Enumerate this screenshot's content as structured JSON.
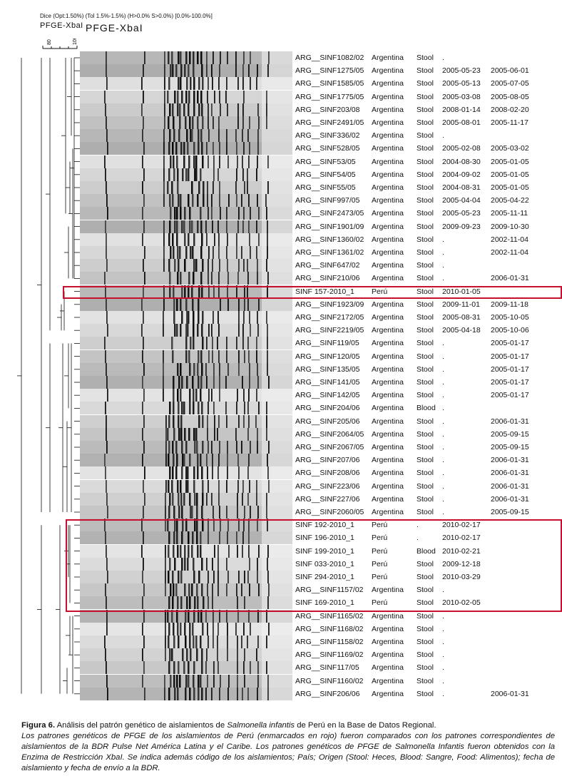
{
  "header": {
    "params": "Dice (Opt:1.50%) (Tol 1.5%-1.5%) (H>0.0% S>0.0%) [0.0%-100.0%]",
    "label_left": "PFGE-XbaI",
    "label_main": "PFGE-XbaI",
    "scale_ticks": [
      "80",
      "100"
    ]
  },
  "accent_color": "#c8102e",
  "rows": [
    {
      "key": "ARG__SINF1082/02",
      "country": "Argentina",
      "source": "Stool",
      "isolation": ".",
      "submission": ""
    },
    {
      "key": "ARG__SINF1275/05",
      "country": "Argentina",
      "source": "Stool",
      "isolation": "2005-05-23",
      "submission": "2005-06-01"
    },
    {
      "key": "ARG__SINF1585/05",
      "country": "Argentina",
      "source": "Stool",
      "isolation": "2005-05-13",
      "submission": "2005-07-05"
    },
    {
      "key": "ARG__SINF1775/05",
      "country": "Argentina",
      "source": "Stool",
      "isolation": "2005-03-08",
      "submission": "2005-08-05"
    },
    {
      "key": "ARG__SINF203/08",
      "country": "Argentina",
      "source": "Stool",
      "isolation": "2008-01-14",
      "submission": "2008-02-20"
    },
    {
      "key": "ARG__SINF2491/05",
      "country": "Argentina",
      "source": "Stool",
      "isolation": "2005-08-01",
      "submission": "2005-11-17"
    },
    {
      "key": "ARG__SINF336/02",
      "country": "Argentina",
      "source": "Stool",
      "isolation": ".",
      "submission": ""
    },
    {
      "key": "ARG__SINF528/05",
      "country": "Argentina",
      "source": "Stool",
      "isolation": "2005-02-08",
      "submission": "2005-03-02"
    },
    {
      "key": "ARG__SINF53/05",
      "country": "Argentina",
      "source": "Stool",
      "isolation": "2004-08-30",
      "submission": "2005-01-05"
    },
    {
      "key": "ARG__SINF54/05",
      "country": "Argentina",
      "source": "Stool",
      "isolation": "2004-09-02",
      "submission": "2005-01-05"
    },
    {
      "key": "ARG__SINF55/05",
      "country": "Argentina",
      "source": "Stool",
      "isolation": "2004-08-31",
      "submission": "2005-01-05"
    },
    {
      "key": "ARG__SINF997/05",
      "country": "Argentina",
      "source": "Stool",
      "isolation": "2005-04-04",
      "submission": "2005-04-22"
    },
    {
      "key": "ARG__SINF2473/05",
      "country": "Argentina",
      "source": "Stool",
      "isolation": "2005-05-23",
      "submission": "2005-11-11"
    },
    {
      "key": "ARG__SINF1901/09",
      "country": "Argentina",
      "source": "Stool",
      "isolation": "2009-09-23",
      "submission": "2009-10-30"
    },
    {
      "key": "ARG__SINF1360/02",
      "country": "Argentina",
      "source": "Stool",
      "isolation": ".",
      "submission": "2002-11-04"
    },
    {
      "key": "ARG__SINF1361/02",
      "country": "Argentina",
      "source": "Stool",
      "isolation": ".",
      "submission": "2002-11-04"
    },
    {
      "key": "ARG__SINF647/02",
      "country": "Argentina",
      "source": "Stool",
      "isolation": ".",
      "submission": ""
    },
    {
      "key": "ARG__SINF210/06",
      "country": "Argentina",
      "source": "Stool",
      "isolation": ".",
      "submission": "2006-01-31"
    },
    {
      "key": "SINF 157-2010_1",
      "country": "Perú",
      "source": "Stool",
      "isolation": "2010-01-05",
      "submission": ""
    },
    {
      "key": "ARG__SINF1923/09",
      "country": "Argentina",
      "source": "Stool",
      "isolation": "2009-11-01",
      "submission": "2009-11-18"
    },
    {
      "key": "ARG__SINF2172/05",
      "country": "Argentina",
      "source": "Stool",
      "isolation": "2005-08-31",
      "submission": "2005-10-05"
    },
    {
      "key": "ARG__SINF2219/05",
      "country": "Argentina",
      "source": "Stool",
      "isolation": "2005-04-18",
      "submission": "2005-10-06"
    },
    {
      "key": "ARG__SINF119/05",
      "country": "Argentina",
      "source": "Stool",
      "isolation": ".",
      "submission": "2005-01-17"
    },
    {
      "key": "ARG__SINF120/05",
      "country": "Argentina",
      "source": "Stool",
      "isolation": ".",
      "submission": "2005-01-17"
    },
    {
      "key": "ARG__SINF135/05",
      "country": "Argentina",
      "source": "Stool",
      "isolation": ".",
      "submission": "2005-01-17"
    },
    {
      "key": "ARG__SINF141/05",
      "country": "Argentina",
      "source": "Stool",
      "isolation": ".",
      "submission": "2005-01-17"
    },
    {
      "key": "ARG__SINF142/05",
      "country": "Argentina",
      "source": "Stool",
      "isolation": ".",
      "submission": "2005-01-17"
    },
    {
      "key": "ARG__SINF204/06",
      "country": "Argentina",
      "source": "Blood",
      "isolation": ".",
      "submission": ""
    },
    {
      "key": "ARG__SINF205/06",
      "country": "Argentina",
      "source": "Stool",
      "isolation": ".",
      "submission": "2006-01-31"
    },
    {
      "key": "ARG__SINF2064/05",
      "country": "Argentina",
      "source": "Stool",
      "isolation": ".",
      "submission": "2005-09-15"
    },
    {
      "key": "ARG__SINF2067/05",
      "country": "Argentina",
      "source": "Stool",
      "isolation": ".",
      "submission": "2005-09-15"
    },
    {
      "key": "ARG__SINF207/06",
      "country": "Argentina",
      "source": "Stool",
      "isolation": ".",
      "submission": "2006-01-31"
    },
    {
      "key": "ARG__SINF208/06",
      "country": "Argentina",
      "source": "Stool",
      "isolation": ".",
      "submission": "2006-01-31"
    },
    {
      "key": "ARG__SINF223/06",
      "country": "Argentina",
      "source": "Stool",
      "isolation": ".",
      "submission": "2006-01-31"
    },
    {
      "key": "ARG__SINF227/06",
      "country": "Argentina",
      "source": "Stool",
      "isolation": ".",
      "submission": "2006-01-31"
    },
    {
      "key": "ARG__SINF2060/05",
      "country": "Argentina",
      "source": "Stool",
      "isolation": ".",
      "submission": "2005-09-15"
    },
    {
      "key": "SINF 192-2010_1",
      "country": "Perú",
      "source": ".",
      "isolation": "2010-02-17",
      "submission": ""
    },
    {
      "key": "SINF 196-2010_1",
      "country": "Perú",
      "source": ".",
      "isolation": "2010-02-17",
      "submission": ""
    },
    {
      "key": "SINF 199-2010_1",
      "country": "Perú",
      "source": "Blood",
      "isolation": "2010-02-21",
      "submission": ""
    },
    {
      "key": "SINF 033-2010_1",
      "country": "Perú",
      "source": "Stool",
      "isolation": "2009-12-18",
      "submission": ""
    },
    {
      "key": "SINF 294-2010_1",
      "country": "Perú",
      "source": "Stool",
      "isolation": "2010-03-29",
      "submission": ""
    },
    {
      "key": "ARG__SINF1157/02",
      "country": "Argentina",
      "source": "Stool",
      "isolation": ".",
      "submission": ""
    },
    {
      "key": "SINF 169-2010_1",
      "country": "Perú",
      "source": "Stool",
      "isolation": "2010-02-05",
      "submission": ""
    },
    {
      "key": "ARG__SINF1165/02",
      "country": "Argentina",
      "source": "Stool",
      "isolation": ".",
      "submission": ""
    },
    {
      "key": "ARG__SINF1168/02",
      "country": "Argentina",
      "source": "Stool",
      "isolation": ".",
      "submission": ""
    },
    {
      "key": "ARG__SINF1158/02",
      "country": "Argentina",
      "source": "Stool",
      "isolation": ".",
      "submission": ""
    },
    {
      "key": "ARG__SINF1169/02",
      "country": "Argentina",
      "source": "Stool",
      "isolation": ".",
      "submission": ""
    },
    {
      "key": "ARG__SINF117/05",
      "country": "Argentina",
      "source": "Stool",
      "isolation": ".",
      "submission": ""
    },
    {
      "key": "ARG__SINF1160/02",
      "country": "Argentina",
      "source": "Stool",
      "isolation": ".",
      "submission": ""
    },
    {
      "key": "ARG__SINF206/06",
      "country": "Argentina",
      "source": "Stool",
      "isolation": ".",
      "submission": "2006-01-31"
    }
  ],
  "caption": {
    "label": "Figura 6.",
    "title_pre": " Análisis del patrón genético de aislamientos de ",
    "title_species": "Salmonella infantis",
    "title_post": " de Perú en la Base de Datos Regional.",
    "body": "Los patrones genéticos de PFGE de los aislamientos de Perú (enmarcados en rojo) fueron comparados con los patrones correspondientes de aislamientos de la BDR Pulse Net América Latina y el Caribe. Los patrones genéticos de PFGE de Salmonella Infantis fueron obtenidos con la Enzima de Restricción XbaI. Se indica además código de los aislamientos; País; Origen (Stool: Heces, Blood: Sangre, Food: Alimentos); fecha de aislamiento y fecha de envío a la BDR."
  }
}
